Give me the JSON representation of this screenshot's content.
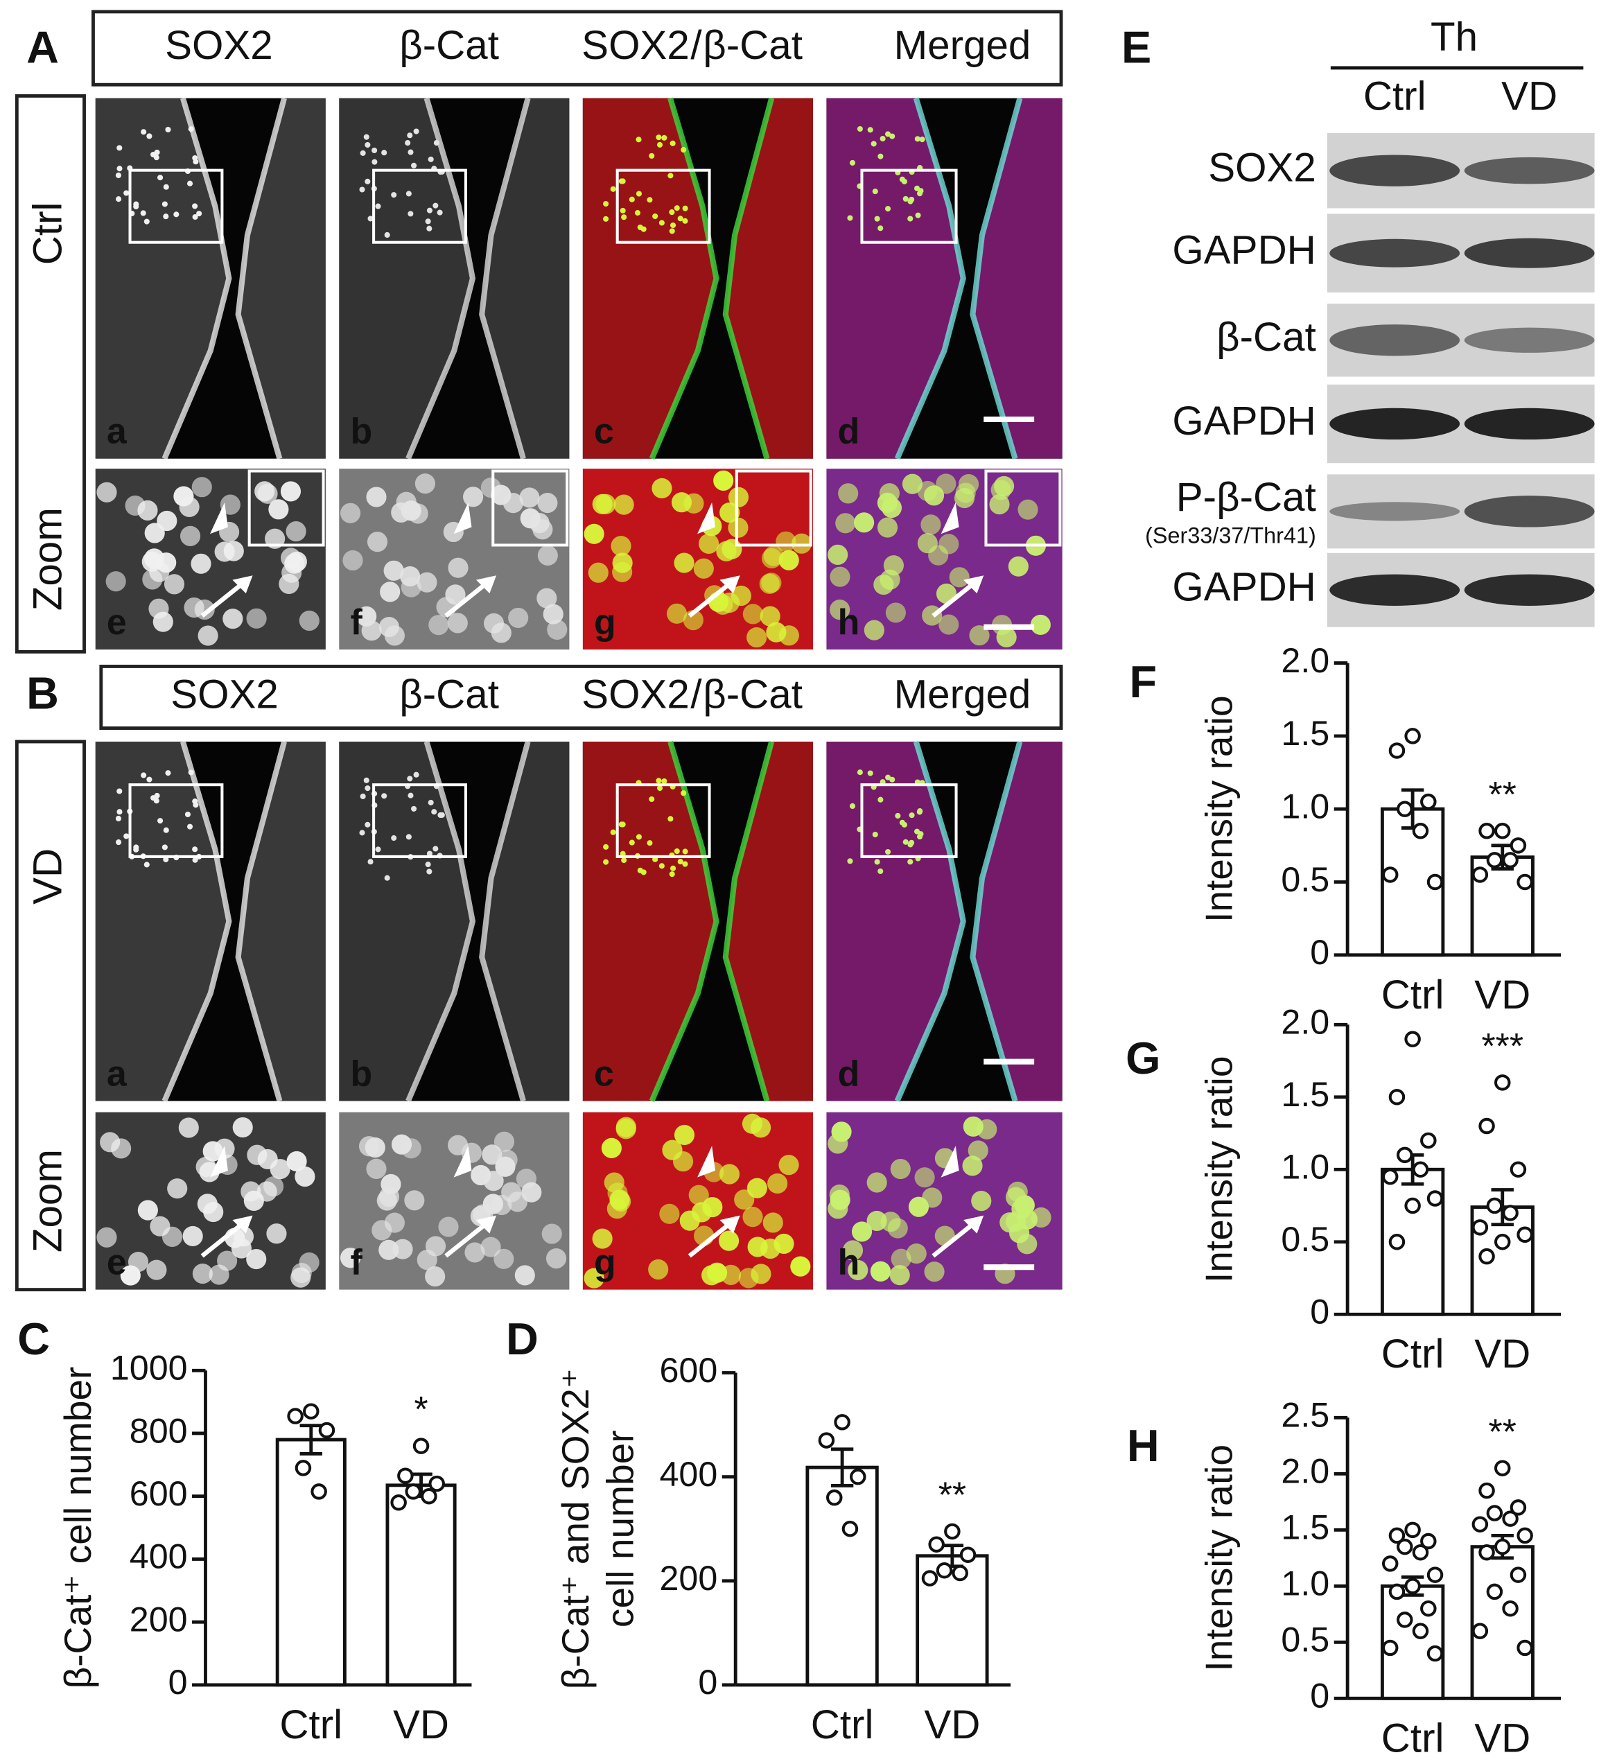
{
  "figure": {
    "panels": [
      "A",
      "B",
      "C",
      "D",
      "E",
      "F",
      "G",
      "H"
    ],
    "image_grids": [
      {
        "header": [
          "SOX2",
          "β-Cat",
          "SOX2",
          "/",
          "β-Cat",
          "Merged"
        ],
        "rows": [
          "Ctrl",
          "Zoom"
        ],
        "letters": [
          "a",
          "b",
          "c",
          "d",
          "e",
          "f",
          "g",
          "h"
        ]
      },
      {
        "header": [
          "SOX2",
          "β-Cat",
          "SOX2",
          "/",
          "β-Cat",
          "Merged"
        ],
        "rows": [
          "VD",
          "Zoom"
        ],
        "letters": [
          "a",
          "b",
          "c",
          "d",
          "e",
          "f",
          "g",
          "h"
        ]
      }
    ],
    "blot": {
      "group": "Th",
      "lanes": [
        "Ctrl",
        "VD"
      ],
      "rows": [
        "SOX2",
        "GAPDH",
        "β-Cat",
        "GAPDH",
        "P-β-Cat",
        "GAPDH"
      ],
      "note": "(Ser33/37/Thr41)"
    }
  },
  "chart_data": [
    {
      "type": "bar",
      "ylabel": "β-Cat⁺ cell number",
      "categories": [
        "Ctrl",
        "VD"
      ],
      "values": [
        780,
        635
      ],
      "errors": [
        45,
        35
      ],
      "points": [
        [
          870,
          855,
          810,
          690,
          615
        ],
        [
          760,
          665,
          640,
          615,
          600,
          580
        ]
      ],
      "annotation": "*",
      "ylim": [
        0,
        1000
      ],
      "yticks": [
        0,
        200,
        400,
        600,
        800,
        1000
      ]
    },
    {
      "type": "bar",
      "ylabel": [
        "β-Cat⁺ and SOX2⁺",
        "cell number"
      ],
      "categories": [
        "Ctrl",
        "VD"
      ],
      "values": [
        418,
        248
      ],
      "errors": [
        35,
        20
      ],
      "points": [
        [
          505,
          470,
          400,
          360,
          300
        ],
        [
          295,
          270,
          250,
          220,
          215,
          205
        ]
      ],
      "annotation": "**",
      "ylim": [
        0,
        600
      ],
      "yticks": [
        0,
        200,
        400,
        600
      ]
    },
    {
      "type": "bar",
      "ylabel": "Intensity ratio",
      "categories": [
        "Ctrl",
        "VD"
      ],
      "values": [
        1.0,
        0.67
      ],
      "errors": [
        0.13,
        0.08
      ],
      "points": [
        [
          1.5,
          1.4,
          1.05,
          1.0,
          0.85,
          0.55,
          0.5
        ],
        [
          0.85,
          0.85,
          0.75,
          0.65,
          0.65,
          0.55,
          0.5
        ]
      ],
      "annotation": "**",
      "ylim": [
        0,
        2
      ],
      "yticks": [
        0,
        0.5,
        {
          "value": 1,
          "label": "1.0"
        },
        1.5,
        {
          "value": 2,
          "label": "2.0"
        }
      ]
    },
    {
      "type": "bar",
      "ylabel": "Intensity ratio",
      "categories": [
        "Ctrl",
        "VD"
      ],
      "values": [
        1.0,
        0.74
      ],
      "errors": [
        0.1,
        0.12
      ],
      "points": [
        [
          1.9,
          1.5,
          1.2,
          1.1,
          1.0,
          0.95,
          0.8,
          0.75,
          0.5
        ],
        [
          1.6,
          1.3,
          1.0,
          0.75,
          0.7,
          0.6,
          0.55,
          0.5,
          0.4
        ]
      ],
      "annotation": "***",
      "ylim": [
        0,
        2
      ],
      "yticks": [
        0,
        0.5,
        {
          "value": 1,
          "label": "1.0"
        },
        1.5,
        {
          "value": 2,
          "label": "2.0"
        }
      ]
    },
    {
      "type": "bar",
      "ylabel": "Intensity ratio",
      "categories": [
        "Ctrl",
        "VD"
      ],
      "values": [
        1.0,
        1.35
      ],
      "errors": [
        0.08,
        0.1
      ],
      "points": [
        [
          1.5,
          1.45,
          1.4,
          1.35,
          1.3,
          1.2,
          1.1,
          1.0,
          0.95,
          0.8,
          0.7,
          0.6,
          0.45,
          0.4
        ],
        [
          2.05,
          1.85,
          1.7,
          1.65,
          1.6,
          1.55,
          1.45,
          1.35,
          1.3,
          1.1,
          0.95,
          0.8,
          0.6,
          0.45
        ]
      ],
      "annotation": "**",
      "ylim": [
        0,
        2.5
      ],
      "yticks": [
        0,
        0.5,
        {
          "value": 1,
          "label": "1.0"
        },
        1.5,
        {
          "value": 2,
          "label": "2.0"
        },
        2.5
      ]
    }
  ]
}
